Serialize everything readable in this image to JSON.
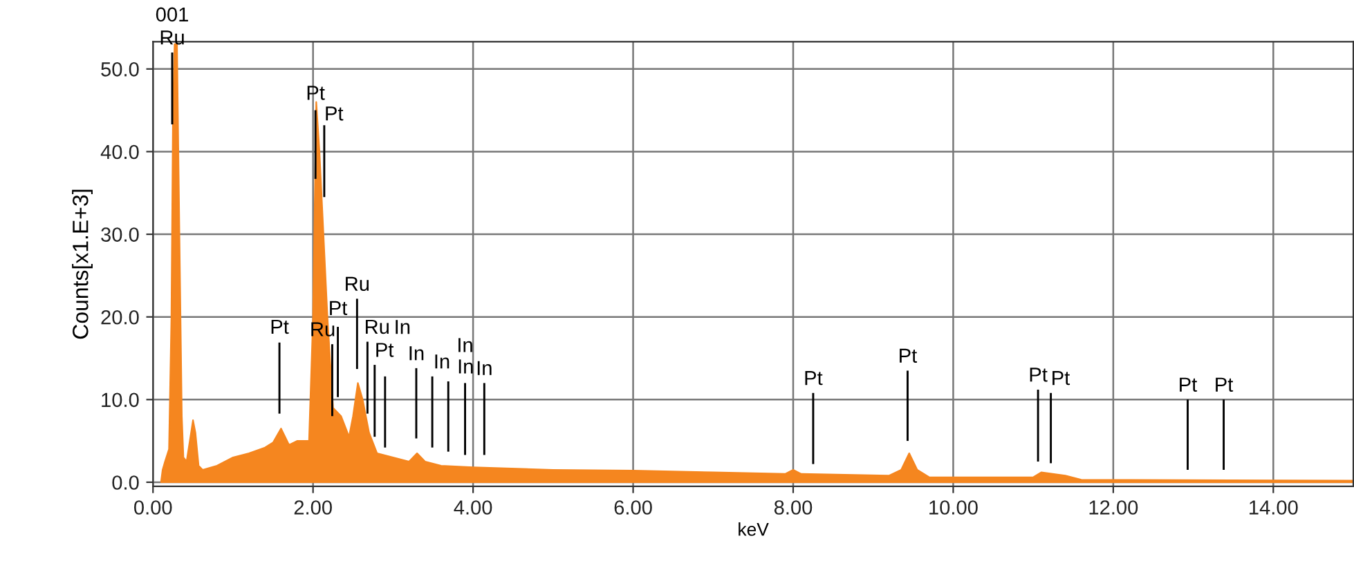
{
  "chart_data": {
    "type": "area",
    "xlabel": "keV",
    "ylabel": "Counts[x1.E+3]",
    "xlim": [
      0,
      15
    ],
    "ylim": [
      -0.5,
      53.3
    ],
    "xticks": [
      {
        "value": 0,
        "label": "0.00"
      },
      {
        "value": 2,
        "label": "2.00"
      },
      {
        "value": 4,
        "label": "4.00"
      },
      {
        "value": 6,
        "label": "6.00"
      },
      {
        "value": 8,
        "label": "8.00"
      },
      {
        "value": 10,
        "label": "10.00"
      },
      {
        "value": 12,
        "label": "12.00"
      },
      {
        "value": 14,
        "label": "14.00"
      }
    ],
    "yticks": [
      {
        "value": 0,
        "label": "0.0"
      },
      {
        "value": 10,
        "label": "10.0"
      },
      {
        "value": 20,
        "label": "20.0"
      },
      {
        "value": 30,
        "label": "30.0"
      },
      {
        "value": 40,
        "label": "40.0"
      },
      {
        "value": 50,
        "label": "50.0"
      }
    ],
    "grid": true,
    "series": [
      {
        "color": "#f5861f",
        "x": [
          0.1,
          0.12,
          0.15,
          0.2,
          0.23,
          0.25,
          0.27,
          0.3,
          0.33,
          0.36,
          0.38,
          0.42,
          0.46,
          0.5,
          0.53,
          0.57,
          0.62,
          0.8,
          1.0,
          1.2,
          1.4,
          1.5,
          1.6,
          1.7,
          1.8,
          1.95,
          2.0,
          2.04,
          2.08,
          2.12,
          2.18,
          2.25,
          2.35,
          2.45,
          2.5,
          2.56,
          2.62,
          2.7,
          2.8,
          3.0,
          3.2,
          3.3,
          3.4,
          3.6,
          4.0,
          5.0,
          6.0,
          7.0,
          7.9,
          8.0,
          8.1,
          9.2,
          9.35,
          9.45,
          9.55,
          9.7,
          11.0,
          11.1,
          11.4,
          11.6,
          15.0
        ],
        "values": [
          0,
          1.5,
          2.5,
          4,
          20,
          45,
          53,
          53,
          30,
          8,
          3,
          2.5,
          5,
          7.5,
          6,
          2,
          1.5,
          2,
          3,
          3.5,
          4.2,
          4.8,
          6.5,
          4.5,
          5,
          5,
          20,
          46,
          40,
          32,
          20,
          9,
          8,
          5.5,
          8,
          12,
          10,
          6,
          3.5,
          3,
          2.5,
          3.5,
          2.5,
          2,
          1.8,
          1.5,
          1.4,
          1.2,
          1,
          1.5,
          1,
          0.8,
          1.5,
          3.5,
          1.5,
          0.6,
          0.6,
          1.2,
          0.8,
          0.3,
          0.2
        ]
      },
      {
        "type": "bar",
        "color": "#000000",
        "x": [
          0.24,
          1.58,
          2.03,
          2.14,
          2.24,
          2.31,
          2.55,
          2.68,
          2.77,
          2.9,
          3.29,
          3.49,
          3.69,
          3.9,
          4.14,
          8.25,
          9.43,
          11.06,
          11.22,
          12.93,
          13.38
        ],
        "base": [
          43.3,
          8.3,
          36.7,
          34.5,
          8.0,
          10.3,
          13.7,
          8.3,
          5.5,
          4.2,
          5.3,
          4.2,
          3.7,
          3.3,
          3.3,
          2.2,
          5,
          2.5,
          2.3,
          1.5,
          1.5
        ],
        "values": [
          8.7,
          8.6,
          8.3,
          8.7,
          8.7,
          8.5,
          8.5,
          8.7,
          8.7,
          8.6,
          8.5,
          8.6,
          8.5,
          8.7,
          8.7,
          8.6,
          8.5,
          8.7,
          8.5,
          8.5,
          8.5
        ]
      }
    ],
    "annotations": [
      {
        "text": "Ru",
        "x": 0.24,
        "y": 52
      },
      {
        "text": "001",
        "x": 0.24,
        "y": 52
      },
      {
        "text": "Pt",
        "x": 1.58,
        "y": 17
      },
      {
        "text": "Ru",
        "x": 2.24,
        "y": 16.7
      },
      {
        "text": "Ru",
        "x": 2.55,
        "y": 22.2
      },
      {
        "text": "Pt",
        "x": 2.31,
        "y": 18.8
      },
      {
        "text": "Ru",
        "x": 2.68,
        "y": 17
      },
      {
        "text": "Pt",
        "x": 2.77,
        "y": 14.2
      },
      {
        "text": "In",
        "x": 2.9,
        "y": 12.8
      },
      {
        "text": "Pt",
        "x": 2.03,
        "y": 45.3
      },
      {
        "text": "Pt",
        "x": 2.14,
        "y": 42.8
      },
      {
        "text": "In",
        "x": 3.29,
        "y": 13.8
      },
      {
        "text": "In",
        "x": 3.49,
        "y": 12.8
      },
      {
        "text": "In",
        "x": 3.69,
        "y": 12.2
      },
      {
        "text": "In",
        "x": 3.9,
        "y": 12
      },
      {
        "text": "In",
        "x": 4.14,
        "y": 12
      },
      {
        "text": "Pt",
        "x": 8.25,
        "y": 10.8
      },
      {
        "text": "Pt",
        "x": 9.43,
        "y": 13.5
      },
      {
        "text": "Pt",
        "x": 11.06,
        "y": 11.2
      },
      {
        "text": "Pt",
        "x": 11.22,
        "y": 10.8
      },
      {
        "text": "Pt",
        "x": 12.93,
        "y": 10
      },
      {
        "text": "Pt",
        "x": 13.38,
        "y": 10
      }
    ]
  }
}
